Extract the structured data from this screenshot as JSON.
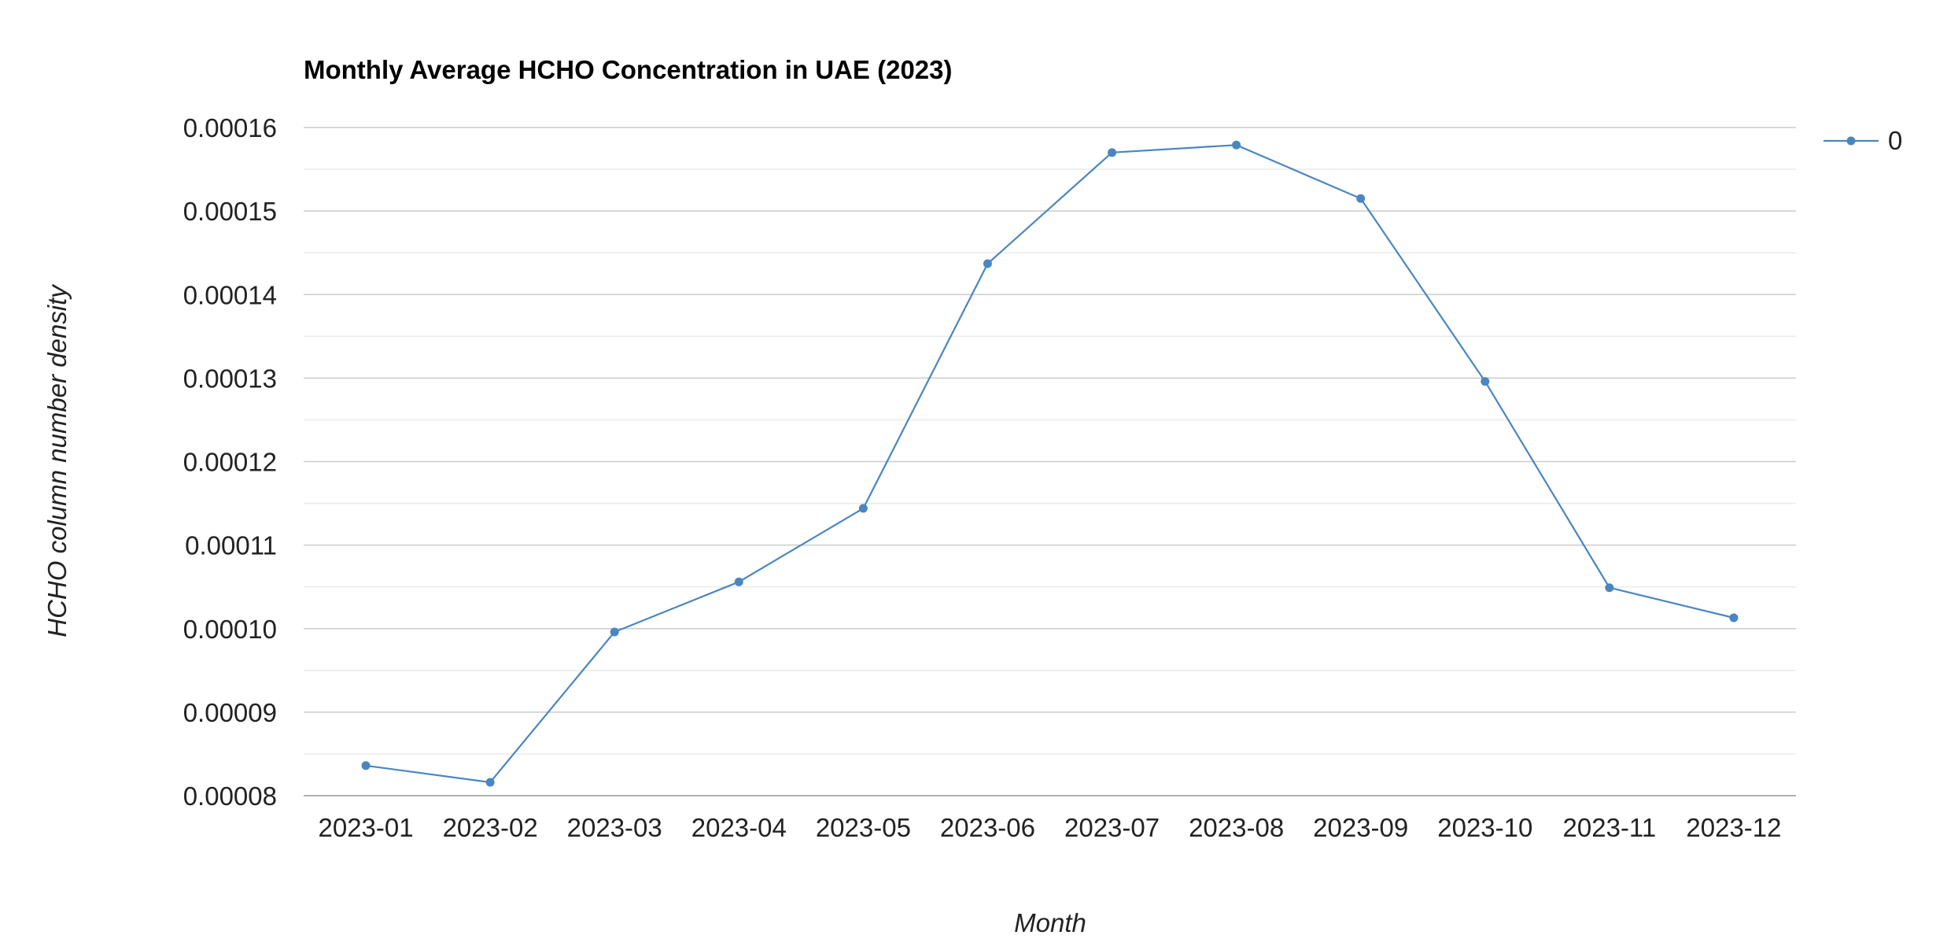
{
  "chart_data": {
    "type": "line",
    "title": "Monthly Average HCHO Concentration in UAE (2023)",
    "xlabel": "Month",
    "ylabel": "HCHO column number density",
    "categories": [
      "2023-01",
      "2023-02",
      "2023-03",
      "2023-04",
      "2023-05",
      "2023-06",
      "2023-07",
      "2023-08",
      "2023-09",
      "2023-10",
      "2023-11",
      "2023-12"
    ],
    "series": [
      {
        "name": "0",
        "color": "#4a86c0",
        "values": [
          8.36e-05,
          8.16e-05,
          9.96e-05,
          0.0001056,
          0.0001144,
          0.0001437,
          0.000157,
          0.0001579,
          0.0001515,
          0.0001296,
          0.0001049,
          0.0001013
        ]
      }
    ],
    "ylim": [
      8e-05,
      0.00016
    ],
    "yticks": [
      "0.00008",
      "0.00009",
      "0.00010",
      "0.00011",
      "0.00012",
      "0.00013",
      "0.00014",
      "0.00015",
      "0.00016"
    ],
    "grid": true,
    "minor_gridlines": true,
    "legend_position": "right"
  }
}
